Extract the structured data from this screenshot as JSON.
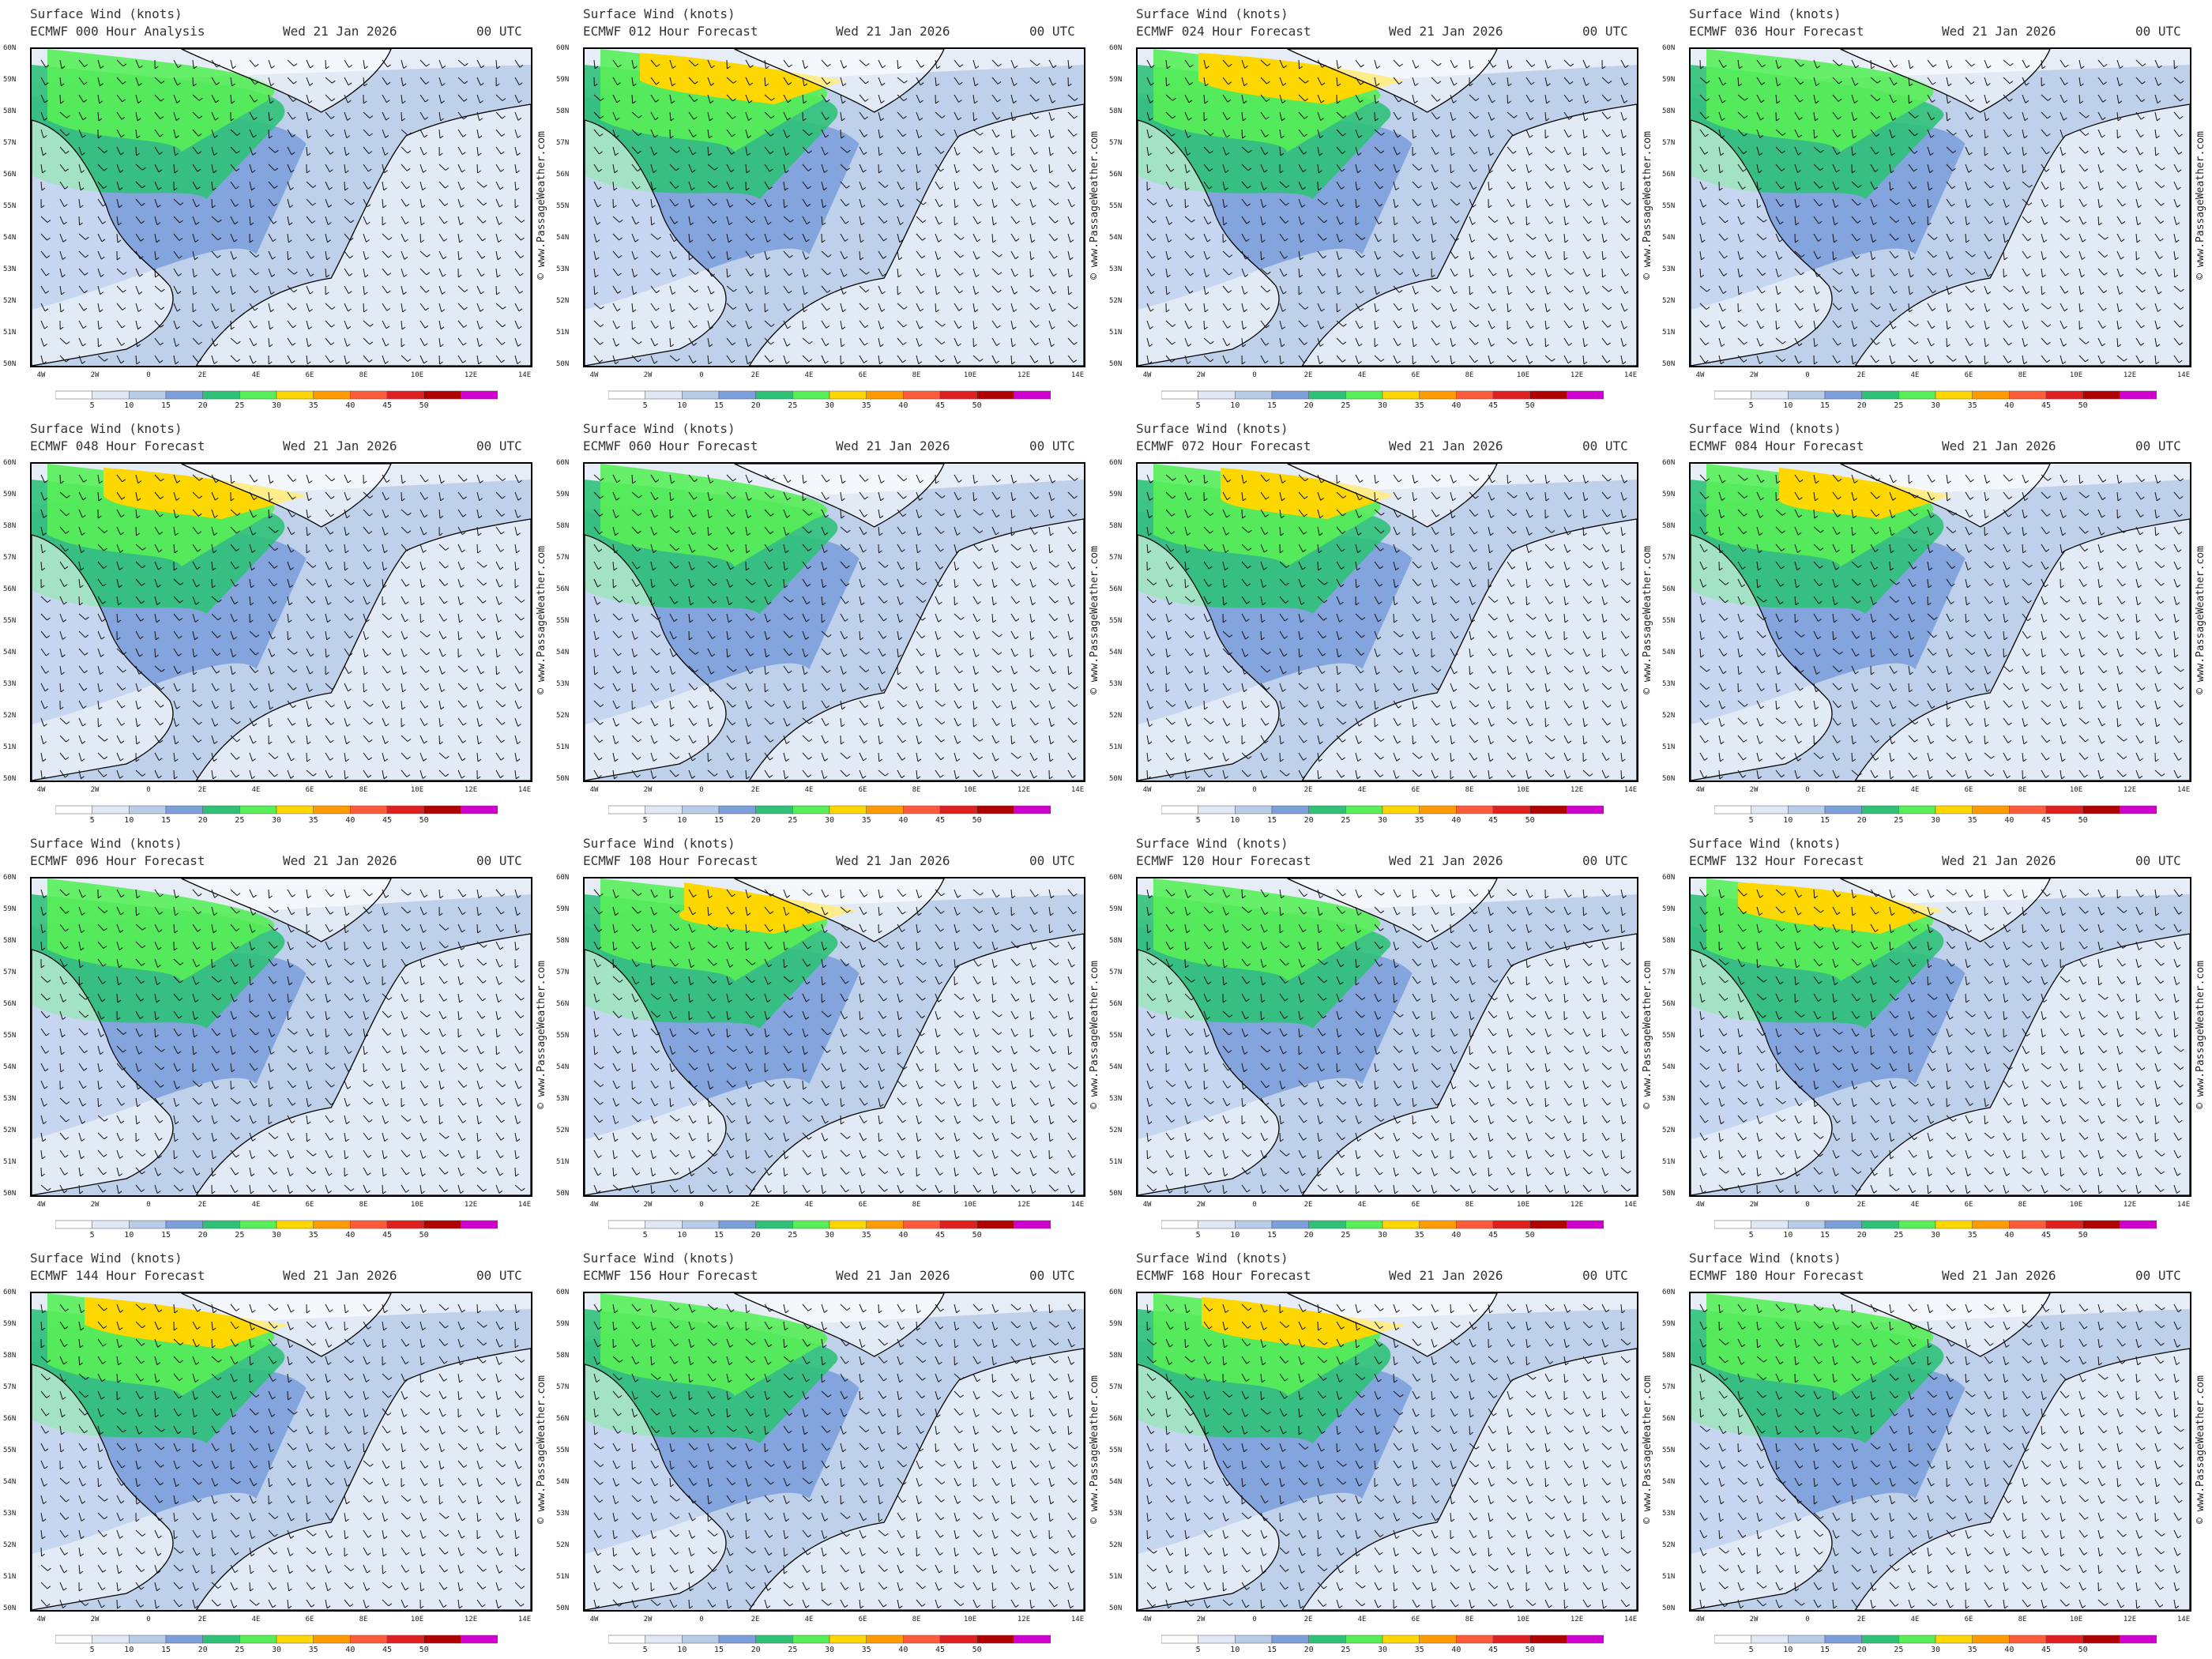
{
  "header": {
    "title": "Surface Wind (knots)",
    "date": "Wed 21 Jan 2026",
    "utc": "00 UTC"
  },
  "credit": "© www.PassageWeather.com",
  "panels": [
    {
      "run": "ECMWF 000 Hour Analysis"
    },
    {
      "run": "ECMWF 012 Hour Forecast"
    },
    {
      "run": "ECMWF 024 Hour Forecast"
    },
    {
      "run": "ECMWF 036 Hour Forecast"
    },
    {
      "run": "ECMWF 048 Hour Forecast"
    },
    {
      "run": "ECMWF 060 Hour Forecast"
    },
    {
      "run": "ECMWF 072 Hour Forecast"
    },
    {
      "run": "ECMWF 084 Hour Forecast"
    },
    {
      "run": "ECMWF 096 Hour Forecast"
    },
    {
      "run": "ECMWF 108 Hour Forecast"
    },
    {
      "run": "ECMWF 120 Hour Forecast"
    },
    {
      "run": "ECMWF 132 Hour Forecast"
    },
    {
      "run": "ECMWF 144 Hour Forecast"
    },
    {
      "run": "ECMWF 156 Hour Forecast"
    },
    {
      "run": "ECMWF 168 Hour Forecast"
    },
    {
      "run": "ECMWF 180 Hour Forecast"
    }
  ],
  "axes": {
    "lat_labels": [
      "60N",
      "59N",
      "58N",
      "57N",
      "56N",
      "55N",
      "54N",
      "53N",
      "52N",
      "51N",
      "50N"
    ],
    "lon_labels": [
      "4W",
      "2W",
      "0",
      "2E",
      "4E",
      "6E",
      "8E",
      "10E",
      "12E",
      "14E"
    ]
  },
  "legend": {
    "values": [
      "5",
      "10",
      "15",
      "20",
      "25",
      "30",
      "35",
      "40",
      "45",
      "50"
    ],
    "colors": [
      "#ffffff",
      "#dfe8f4",
      "#b9cce8",
      "#7c9fdc",
      "#2fc178",
      "#58ee58",
      "#ffd700",
      "#ff9a00",
      "#ff5a3a",
      "#e02020",
      "#b00000",
      "#d000d0"
    ]
  }
}
